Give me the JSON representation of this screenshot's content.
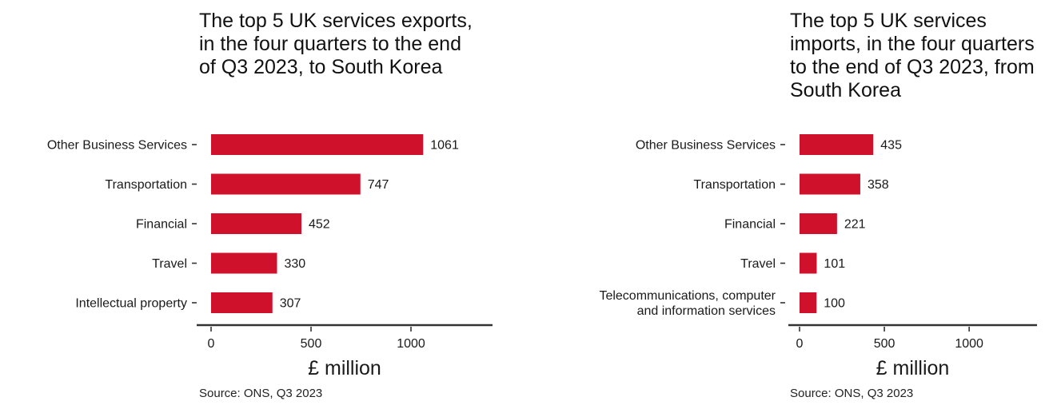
{
  "colors": {
    "bar": "#d0112b",
    "axis": "#333333",
    "text": "#1a1a1a"
  },
  "chart_data": [
    {
      "type": "bar",
      "orientation": "horizontal",
      "title": "The top 5 UK services exports, in the four quarters to the end of Q3 2023, to South Korea",
      "categories": [
        "Other Business Services",
        "Transportation",
        "Financial",
        "Travel",
        "Intellectual property"
      ],
      "values": [
        1061,
        747,
        452,
        330,
        307
      ],
      "xlabel": "£ million",
      "ylabel": "",
      "xlim": [
        0,
        1400
      ],
      "xticks": [
        "0",
        "500",
        "1000"
      ],
      "xtick_values": [
        0,
        500,
        1000
      ],
      "source": "Source: ONS, Q3 2023",
      "grid": false
    },
    {
      "type": "bar",
      "orientation": "horizontal",
      "title": "The top 5 UK services imports, in the four quarters to the end of Q3 2023, from South Korea",
      "categories": [
        "Other Business Services",
        "Transportation",
        "Financial",
        "Travel",
        "Telecommunications, computer\nand information services"
      ],
      "values": [
        435,
        358,
        221,
        101,
        100
      ],
      "xlabel": "£ million",
      "ylabel": "",
      "xlim": [
        0,
        1400
      ],
      "xticks": [
        "0",
        "500",
        "1000"
      ],
      "xtick_values": [
        0,
        500,
        1000
      ],
      "source": "Source: ONS, Q3 2023",
      "grid": false
    }
  ]
}
